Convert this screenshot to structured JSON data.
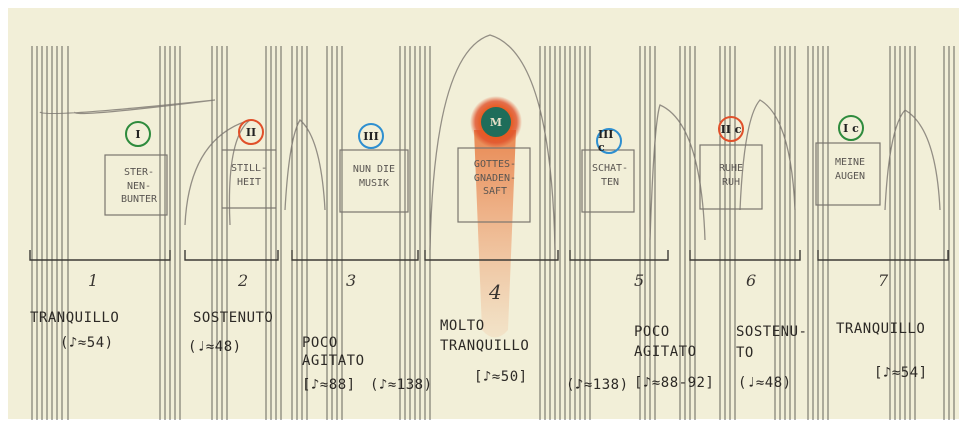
{
  "sections": [
    {
      "number": "1",
      "roman": "I",
      "circle_color": "#2e8b3d",
      "box_text": "STER-\nNEN-\nBUNTER",
      "tempo_text": "TRANQUILLO",
      "tempo_mark": "(♪≈54)"
    },
    {
      "number": "2",
      "roman": "II",
      "circle_color": "#e0502a",
      "box_text": "STILL-\nHEIT",
      "tempo_text": "SOSTENUTO",
      "tempo_mark": "(♩≈48)"
    },
    {
      "number": "3",
      "roman": "III",
      "circle_color": "#2e8fd0",
      "box_text": "NUN DIE\nMUSIK",
      "tempo_text": "POCO\nAGITATO",
      "tempo_mark": "[♪≈88]",
      "tempo_mark2": "(♪≈138)"
    },
    {
      "number": "4",
      "roman": "M",
      "circle_color": "#e85a1c",
      "box_text": "GOTTES-\nGNADEN-\nSAFT",
      "tempo_text": "MOLTO\nTRANQUILLO",
      "tempo_mark": "[♪≈50]"
    },
    {
      "number": "5",
      "roman": "III c",
      "circle_color": "#2e8fd0",
      "box_text": "SCHAT-\nTEN",
      "tempo_text": "",
      "tempo_mark": "(♪≈138)"
    },
    {
      "number": "6",
      "roman": "II c",
      "circle_color": "#e0502a",
      "box_text": "RUHE\nRUH",
      "tempo_text": "POCO\nAGITATO",
      "tempo_mark": "[♪≈88-92]",
      "tempo_text2": "SOSTENU-\nTO",
      "tempo_mark2": "(♩≈48)"
    },
    {
      "number": "7",
      "roman": "I c",
      "circle_color": "#2e8b3d",
      "box_text": "MEINE\nAUGEN",
      "tempo_text": "TRANQUILLO",
      "tempo_mark": "[♪≈54]"
    }
  ],
  "colors": {
    "paper": "#f2efd8",
    "line": "#3c3a36",
    "pencil": "#7a766f",
    "shaft": "#e8824a",
    "center": "#1f6d5a"
  }
}
